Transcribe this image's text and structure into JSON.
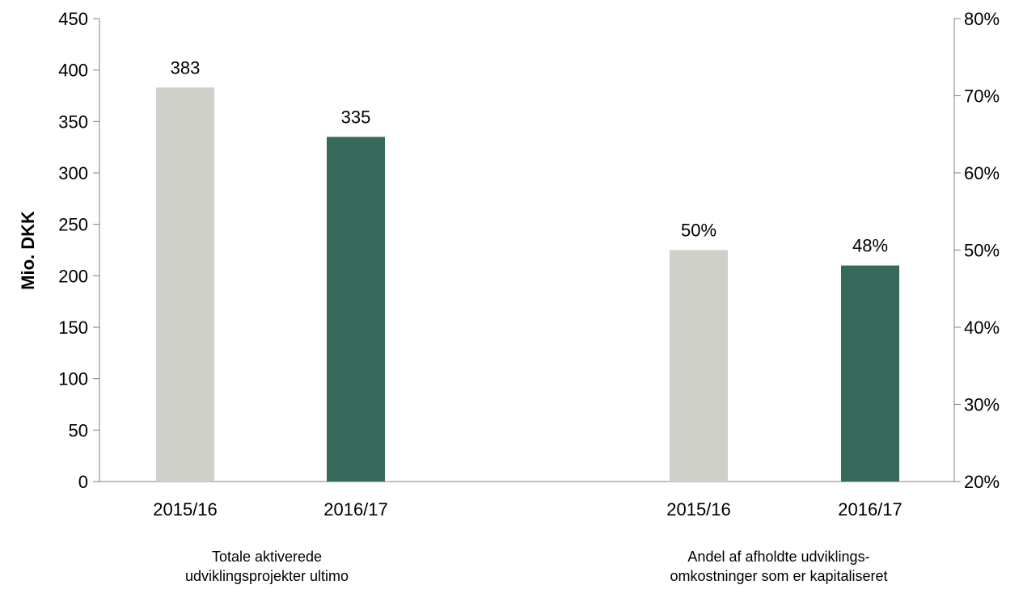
{
  "chart_data": {
    "type": "bar",
    "ylabel": "Mio. DKK",
    "y_left": {
      "ylim": [
        0,
        450
      ],
      "ticks": [
        "0",
        "50",
        "100",
        "150",
        "200",
        "250",
        "300",
        "350",
        "400",
        "450"
      ]
    },
    "y_right": {
      "ylim": [
        0.2,
        0.8
      ],
      "ticks": [
        "20%",
        "30%",
        "40%",
        "50%",
        "60%",
        "70%",
        "80%"
      ]
    },
    "colors": {
      "2015/16": "#d0d0cb",
      "2016/17": "#376a5a"
    },
    "grid": false,
    "groups": [
      {
        "label_lines": [
          "Totale aktiverede",
          "udviklingsprojekter ultimo"
        ],
        "axis": "left",
        "categories": [
          "2015/16",
          "2016/17"
        ],
        "values": [
          383,
          335
        ],
        "data_labels": [
          "383",
          "335"
        ]
      },
      {
        "label_lines": [
          "Andel af afholdte udviklings-",
          "omkostninger som er kapitaliseret"
        ],
        "axis": "right",
        "categories": [
          "2015/16",
          "2016/17"
        ],
        "values": [
          0.5,
          0.48
        ],
        "data_labels": [
          "50%",
          "48%"
        ]
      }
    ]
  }
}
